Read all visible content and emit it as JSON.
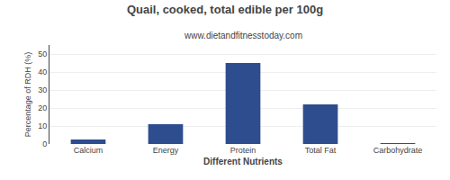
{
  "chart_data": {
    "type": "bar",
    "title": "Quail, cooked, total edible per 100g",
    "subtitle": "www.dietandfitnesstoday.com",
    "xlabel": "Different Nutrients",
    "ylabel": "Percentage of RDH (%)",
    "categories": [
      "Calcium",
      "Energy",
      "Protein",
      "Total Fat",
      "Carbohydrate"
    ],
    "values": [
      2.5,
      11.0,
      45.0,
      22.0,
      0.5
    ],
    "color": "#2e4d8e",
    "ylim": [
      0,
      55
    ],
    "yticks": [
      0,
      10,
      20,
      30,
      40,
      50
    ],
    "grid": true
  }
}
